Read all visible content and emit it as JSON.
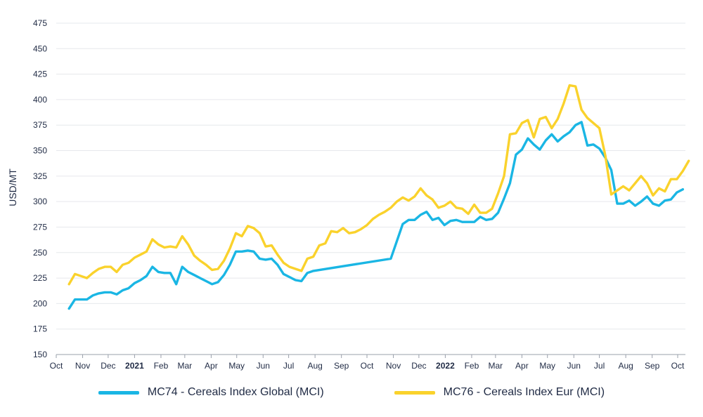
{
  "chart_data": {
    "type": "line",
    "ylabel": "USD/MT",
    "ylim": [
      150,
      475
    ],
    "yticks": [
      150,
      175,
      200,
      225,
      250,
      275,
      300,
      325,
      350,
      375,
      400,
      425,
      450,
      475
    ],
    "xlim": [
      "2020-10-01",
      "2022-10-01"
    ],
    "xticks": [
      {
        "date": "2020-10-01",
        "label": "Oct",
        "bold": false
      },
      {
        "date": "2020-11-01",
        "label": "Nov",
        "bold": false
      },
      {
        "date": "2020-12-01",
        "label": "Dec",
        "bold": false
      },
      {
        "date": "2021-01-01",
        "label": "2021",
        "bold": true
      },
      {
        "date": "2021-02-01",
        "label": "Feb",
        "bold": false
      },
      {
        "date": "2021-03-01",
        "label": "Mar",
        "bold": false
      },
      {
        "date": "2021-04-01",
        "label": "Apr",
        "bold": false
      },
      {
        "date": "2021-05-01",
        "label": "May",
        "bold": false
      },
      {
        "date": "2021-06-01",
        "label": "Jun",
        "bold": false
      },
      {
        "date": "2021-07-01",
        "label": "Jul",
        "bold": false
      },
      {
        "date": "2021-08-01",
        "label": "Aug",
        "bold": false
      },
      {
        "date": "2021-09-01",
        "label": "Sep",
        "bold": false
      },
      {
        "date": "2021-10-01",
        "label": "Oct",
        "bold": false
      },
      {
        "date": "2021-11-01",
        "label": "Nov",
        "bold": false
      },
      {
        "date": "2021-12-01",
        "label": "Dec",
        "bold": false
      },
      {
        "date": "2022-01-01",
        "label": "2022",
        "bold": true
      },
      {
        "date": "2022-02-01",
        "label": "Feb",
        "bold": false
      },
      {
        "date": "2022-03-01",
        "label": "Mar",
        "bold": false
      },
      {
        "date": "2022-04-01",
        "label": "Apr",
        "bold": false
      },
      {
        "date": "2022-05-01",
        "label": "May",
        "bold": false
      },
      {
        "date": "2022-06-01",
        "label": "Jun",
        "bold": false
      },
      {
        "date": "2022-07-01",
        "label": "Jul",
        "bold": false
      },
      {
        "date": "2022-08-01",
        "label": "Aug",
        "bold": false
      },
      {
        "date": "2022-09-01",
        "label": "Sep",
        "bold": false
      },
      {
        "date": "2022-10-01",
        "label": "Oct",
        "bold": false
      }
    ],
    "grid": true,
    "legend_position": "bottom",
    "series": [
      {
        "name": "MC74 - Cereals Index Global (MCI)",
        "color": "#1ab6e4",
        "points": [
          [
            "2020-10-16",
            195
          ],
          [
            "2020-10-23",
            204
          ],
          [
            "2020-10-30",
            204
          ],
          [
            "2020-11-06",
            204
          ],
          [
            "2020-11-13",
            208
          ],
          [
            "2020-11-20",
            210
          ],
          [
            "2020-11-27",
            211
          ],
          [
            "2020-12-04",
            211
          ],
          [
            "2020-12-11",
            209
          ],
          [
            "2020-12-18",
            213
          ],
          [
            "2020-12-25",
            215
          ],
          [
            "2021-01-01",
            220
          ],
          [
            "2021-01-08",
            223
          ],
          [
            "2021-01-15",
            227
          ],
          [
            "2021-01-22",
            236
          ],
          [
            "2021-01-29",
            231
          ],
          [
            "2021-02-05",
            230
          ],
          [
            "2021-02-12",
            230
          ],
          [
            "2021-02-19",
            219
          ],
          [
            "2021-02-26",
            236
          ],
          [
            "2021-03-05",
            231
          ],
          [
            "2021-03-12",
            228
          ],
          [
            "2021-03-19",
            225
          ],
          [
            "2021-03-26",
            222
          ],
          [
            "2021-04-02",
            219
          ],
          [
            "2021-04-09",
            221
          ],
          [
            "2021-04-16",
            228
          ],
          [
            "2021-04-23",
            238
          ],
          [
            "2021-04-30",
            251
          ],
          [
            "2021-05-07",
            251
          ],
          [
            "2021-05-14",
            252
          ],
          [
            "2021-05-21",
            251
          ],
          [
            "2021-05-28",
            244
          ],
          [
            "2021-06-04",
            243
          ],
          [
            "2021-06-11",
            244
          ],
          [
            "2021-06-18",
            238
          ],
          [
            "2021-06-25",
            229
          ],
          [
            "2021-07-02",
            226
          ],
          [
            "2021-07-09",
            223
          ],
          [
            "2021-07-16",
            222
          ],
          [
            "2021-07-23",
            230
          ],
          [
            "2021-07-30",
            232
          ],
          [
            "2021-10-29",
            244
          ],
          [
            "2021-11-05",
            261
          ],
          [
            "2021-11-12",
            278
          ],
          [
            "2021-11-19",
            282
          ],
          [
            "2021-11-26",
            282
          ],
          [
            "2021-12-03",
            287
          ],
          [
            "2021-12-10",
            290
          ],
          [
            "2021-12-17",
            282
          ],
          [
            "2021-12-24",
            284
          ],
          [
            "2021-12-31",
            277
          ],
          [
            "2022-01-07",
            281
          ],
          [
            "2022-01-14",
            282
          ],
          [
            "2022-01-21",
            280
          ],
          [
            "2022-01-28",
            280
          ],
          [
            "2022-02-04",
            280
          ],
          [
            "2022-02-11",
            285
          ],
          [
            "2022-02-18",
            282
          ],
          [
            "2022-02-25",
            283
          ],
          [
            "2022-03-04",
            289
          ],
          [
            "2022-03-11",
            303
          ],
          [
            "2022-03-18",
            318
          ],
          [
            "2022-03-25",
            346
          ],
          [
            "2022-04-01",
            351
          ],
          [
            "2022-04-08",
            362
          ],
          [
            "2022-04-15",
            356
          ],
          [
            "2022-04-22",
            351
          ],
          [
            "2022-04-29",
            360
          ],
          [
            "2022-05-06",
            366
          ],
          [
            "2022-05-13",
            359
          ],
          [
            "2022-05-20",
            364
          ],
          [
            "2022-05-27",
            368
          ],
          [
            "2022-06-03",
            375
          ],
          [
            "2022-06-10",
            378
          ],
          [
            "2022-06-17",
            355
          ],
          [
            "2022-06-24",
            356
          ],
          [
            "2022-07-01",
            352
          ],
          [
            "2022-07-08",
            343
          ],
          [
            "2022-07-15",
            331
          ],
          [
            "2022-07-22",
            298
          ],
          [
            "2022-07-29",
            298
          ],
          [
            "2022-08-05",
            301
          ],
          [
            "2022-08-12",
            296
          ],
          [
            "2022-08-19",
            300
          ],
          [
            "2022-08-26",
            305
          ],
          [
            "2022-09-02",
            298
          ],
          [
            "2022-09-09",
            296
          ],
          [
            "2022-09-16",
            301
          ],
          [
            "2022-09-23",
            302
          ],
          [
            "2022-09-30",
            309
          ],
          [
            "2022-10-07",
            312
          ]
        ]
      },
      {
        "name": "MC76 - Cereals Index Eur (MCI)",
        "color": "#fad22c",
        "points": [
          [
            "2020-10-16",
            219
          ],
          [
            "2020-10-23",
            229
          ],
          [
            "2020-10-30",
            227
          ],
          [
            "2020-11-06",
            225
          ],
          [
            "2020-11-13",
            230
          ],
          [
            "2020-11-20",
            234
          ],
          [
            "2020-11-27",
            236
          ],
          [
            "2020-12-04",
            236
          ],
          [
            "2020-12-11",
            231
          ],
          [
            "2020-12-18",
            238
          ],
          [
            "2020-12-25",
            240
          ],
          [
            "2021-01-01",
            245
          ],
          [
            "2021-01-08",
            248
          ],
          [
            "2021-01-15",
            251
          ],
          [
            "2021-01-22",
            263
          ],
          [
            "2021-01-29",
            258
          ],
          [
            "2021-02-05",
            255
          ],
          [
            "2021-02-12",
            256
          ],
          [
            "2021-02-19",
            255
          ],
          [
            "2021-02-26",
            266
          ],
          [
            "2021-03-05",
            258
          ],
          [
            "2021-03-12",
            247
          ],
          [
            "2021-03-19",
            242
          ],
          [
            "2021-03-26",
            238
          ],
          [
            "2021-04-02",
            233
          ],
          [
            "2021-04-09",
            234
          ],
          [
            "2021-04-16",
            242
          ],
          [
            "2021-04-23",
            254
          ],
          [
            "2021-04-30",
            269
          ],
          [
            "2021-05-07",
            266
          ],
          [
            "2021-05-14",
            276
          ],
          [
            "2021-05-21",
            274
          ],
          [
            "2021-05-28",
            269
          ],
          [
            "2021-06-04",
            256
          ],
          [
            "2021-06-11",
            257
          ],
          [
            "2021-06-18",
            248
          ],
          [
            "2021-06-25",
            240
          ],
          [
            "2021-07-02",
            236
          ],
          [
            "2021-07-09",
            234
          ],
          [
            "2021-07-16",
            232
          ],
          [
            "2021-07-23",
            244
          ],
          [
            "2021-07-30",
            246
          ],
          [
            "2021-08-06",
            257
          ],
          [
            "2021-08-13",
            259
          ],
          [
            "2021-08-20",
            271
          ],
          [
            "2021-08-27",
            270
          ],
          [
            "2021-09-03",
            274
          ],
          [
            "2021-09-10",
            269
          ],
          [
            "2021-09-17",
            270
          ],
          [
            "2021-09-24",
            273
          ],
          [
            "2021-10-01",
            277
          ],
          [
            "2021-10-08",
            283
          ],
          [
            "2021-10-15",
            287
          ],
          [
            "2021-10-22",
            290
          ],
          [
            "2021-10-29",
            294
          ],
          [
            "2021-11-05",
            300
          ],
          [
            "2021-11-12",
            304
          ],
          [
            "2021-11-19",
            301
          ],
          [
            "2021-11-26",
            305
          ],
          [
            "2021-12-03",
            313
          ],
          [
            "2021-12-10",
            306
          ],
          [
            "2021-12-17",
            302
          ],
          [
            "2021-12-24",
            294
          ],
          [
            "2021-12-31",
            296
          ],
          [
            "2022-01-07",
            300
          ],
          [
            "2022-01-14",
            294
          ],
          [
            "2022-01-21",
            293
          ],
          [
            "2022-01-28",
            288
          ],
          [
            "2022-02-04",
            297
          ],
          [
            "2022-02-11",
            289
          ],
          [
            "2022-02-18",
            289
          ],
          [
            "2022-02-25",
            293
          ],
          [
            "2022-03-04",
            308
          ],
          [
            "2022-03-11",
            325
          ],
          [
            "2022-03-18",
            366
          ],
          [
            "2022-03-25",
            367
          ],
          [
            "2022-04-01",
            377
          ],
          [
            "2022-04-08",
            380
          ],
          [
            "2022-04-15",
            363
          ],
          [
            "2022-04-22",
            381
          ],
          [
            "2022-04-29",
            383
          ],
          [
            "2022-05-06",
            372
          ],
          [
            "2022-05-13",
            381
          ],
          [
            "2022-05-20",
            396
          ],
          [
            "2022-05-27",
            414
          ],
          [
            "2022-06-03",
            413
          ],
          [
            "2022-06-10",
            390
          ],
          [
            "2022-06-17",
            382
          ],
          [
            "2022-06-24",
            377
          ],
          [
            "2022-07-01",
            372
          ],
          [
            "2022-07-08",
            345
          ],
          [
            "2022-07-15",
            307
          ],
          [
            "2022-07-22",
            311
          ],
          [
            "2022-07-29",
            315
          ],
          [
            "2022-08-05",
            311
          ],
          [
            "2022-08-12",
            318
          ],
          [
            "2022-08-19",
            325
          ],
          [
            "2022-08-26",
            318
          ],
          [
            "2022-09-02",
            306
          ],
          [
            "2022-09-09",
            313
          ],
          [
            "2022-09-16",
            310
          ],
          [
            "2022-09-23",
            322
          ],
          [
            "2022-09-30",
            322
          ],
          [
            "2022-10-07",
            330
          ],
          [
            "2022-10-14",
            340
          ]
        ]
      }
    ]
  }
}
